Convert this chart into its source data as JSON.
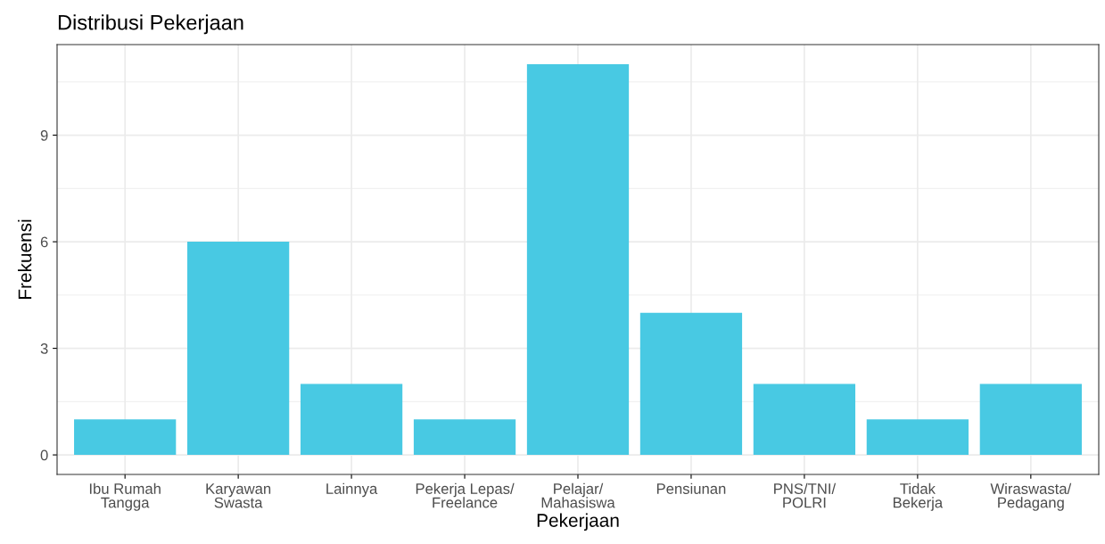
{
  "chart_data": {
    "type": "bar",
    "title": "Distribusi Pekerjaan",
    "xlabel": "Pekerjaan",
    "ylabel": "Frekuensi",
    "categories": [
      "Ibu Rumah\nTangga",
      "Karyawan\nSwasta",
      "Lainnya",
      "Pekerja Lepas/\nFreelance",
      "Pelajar/\nMahasiswa",
      "Pensiunan",
      "PNS/TNI/\nPOLRI",
      "Tidak\nBekerja",
      "Wiraswasta/\nPedagang"
    ],
    "values": [
      1,
      6,
      2,
      1,
      11,
      4,
      2,
      1,
      2
    ],
    "color": "#48c9e3",
    "ylim": [
      -0.55,
      11.55
    ],
    "yticks": [
      0,
      3,
      6,
      9
    ],
    "grid": true,
    "legend": false
  }
}
